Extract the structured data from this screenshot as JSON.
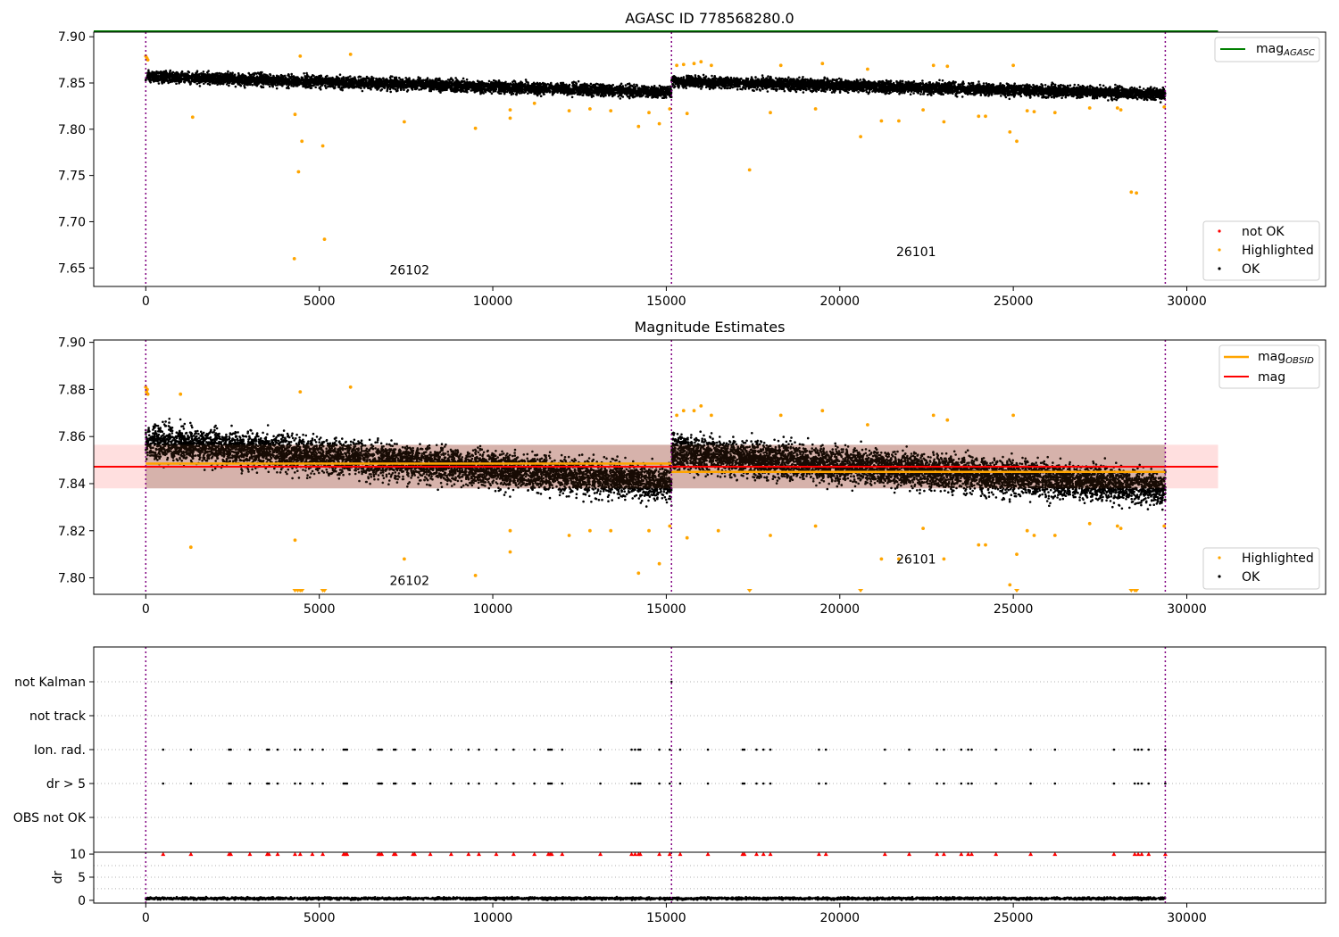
{
  "figure": {
    "panel1_title": "AGASC ID 778568280.0",
    "panel2_title": "Magnitude Estimates"
  },
  "colors": {
    "ok": "#000000",
    "highlighted": "#ffa500",
    "not_ok": "#ff0000",
    "mag_agasc": "#008000",
    "mag_obsid": "#ffa500",
    "mag": "#ff0000",
    "obsid_boundary": "#800080",
    "band_fill": "#ffc0c0"
  },
  "chart_data": [
    {
      "id": "agasc_panel",
      "type": "scatter",
      "title": "AGASC ID 778568280.0",
      "xlim": [
        -1500,
        34000
      ],
      "ylim": [
        7.63,
        7.905
      ],
      "xticks": [
        0,
        5000,
        10000,
        15000,
        20000,
        25000,
        30000
      ],
      "yticks": [
        7.65,
        7.7,
        7.75,
        7.8,
        7.85,
        7.9
      ],
      "ytick_labels": [
        "7.65",
        "7.70",
        "7.75",
        "7.80",
        "7.85",
        "7.90"
      ],
      "hline": {
        "name": "mag",
        "sub": "AGASC",
        "y": 7.906,
        "x": [
          -1500,
          30900
        ]
      },
      "obsid_boundaries": [
        0,
        15150,
        29380
      ],
      "obsids": [
        {
          "label": "26102",
          "x": 7600,
          "y": 7.643
        },
        {
          "label": "26101",
          "x": 22200,
          "y": 7.663
        }
      ],
      "legend": [
        "not OK",
        "Highlighted",
        "OK"
      ],
      "legend_lines": [
        "mag"
      ],
      "series": [
        {
          "name": "OK",
          "segments": [
            {
              "x": [
                0,
                15150
              ],
              "y_start": 7.857,
              "y_end": 7.84,
              "spread": 0.01
            },
            {
              "x": [
                15150,
                29380
              ],
              "y_start": 7.852,
              "y_end": 7.838,
              "spread": 0.01
            }
          ]
        },
        {
          "name": "Highlighted",
          "points": [
            [
              0,
              7.879
            ],
            [
              30,
              7.877
            ],
            [
              60,
              7.875
            ],
            [
              4280,
              7.66
            ],
            [
              4400,
              7.754
            ],
            [
              4500,
              7.787
            ],
            [
              4300,
              7.816
            ],
            [
              4450,
              7.879
            ],
            [
              5100,
              7.782
            ],
            [
              5150,
              7.681
            ],
            [
              5900,
              7.881
            ],
            [
              7450,
              7.808
            ],
            [
              1350,
              7.813
            ],
            [
              9500,
              7.801
            ],
            [
              10500,
              7.812
            ],
            [
              10500,
              7.821
            ],
            [
              11200,
              7.828
            ],
            [
              12200,
              7.82
            ],
            [
              12800,
              7.822
            ],
            [
              13400,
              7.82
            ],
            [
              14200,
              7.803
            ],
            [
              14500,
              7.818
            ],
            [
              14800,
              7.806
            ],
            [
              15100,
              7.822
            ],
            [
              15300,
              7.869
            ],
            [
              15500,
              7.87
            ],
            [
              15800,
              7.871
            ],
            [
              16000,
              7.873
            ],
            [
              16300,
              7.869
            ],
            [
              15600,
              7.817
            ],
            [
              17400,
              7.756
            ],
            [
              18000,
              7.818
            ],
            [
              18300,
              7.869
            ],
            [
              19500,
              7.871
            ],
            [
              19300,
              7.822
            ],
            [
              20600,
              7.792
            ],
            [
              20800,
              7.865
            ],
            [
              21200,
              7.809
            ],
            [
              21700,
              7.809
            ],
            [
              22400,
              7.821
            ],
            [
              22700,
              7.869
            ],
            [
              23000,
              7.808
            ],
            [
              23100,
              7.868
            ],
            [
              24000,
              7.814
            ],
            [
              24200,
              7.814
            ],
            [
              24900,
              7.797
            ],
            [
              25000,
              7.869
            ],
            [
              25100,
              7.787
            ],
            [
              25400,
              7.82
            ],
            [
              25600,
              7.819
            ],
            [
              26200,
              7.818
            ],
            [
              27200,
              7.823
            ],
            [
              28000,
              7.823
            ],
            [
              28100,
              7.821
            ],
            [
              28400,
              7.732
            ],
            [
              28550,
              7.731
            ],
            [
              29350,
              7.824
            ]
          ]
        }
      ]
    },
    {
      "id": "mag_estimates_panel",
      "type": "scatter",
      "title": "Magnitude Estimates",
      "xlim": [
        -1500,
        34000
      ],
      "ylim": [
        7.793,
        7.901
      ],
      "xticks": [
        0,
        5000,
        10000,
        15000,
        20000,
        25000,
        30000
      ],
      "yticks": [
        7.8,
        7.82,
        7.84,
        7.86,
        7.88,
        7.9
      ],
      "ytick_labels": [
        "7.80",
        "7.82",
        "7.84",
        "7.86",
        "7.88",
        "7.90"
      ],
      "obsid_boundaries": [
        0,
        15150,
        29380
      ],
      "obsids": [
        {
          "label": "26102",
          "x": 7600,
          "y": 7.797
        },
        {
          "label": "26101",
          "x": 22200,
          "y": 7.806
        }
      ],
      "lines": [
        {
          "name": "mag",
          "sub": "OBSID",
          "segments": [
            {
              "x": [
                0,
                15150
              ],
              "y": 7.8485
            },
            {
              "x": [
                15150,
                29380
              ],
              "y": 7.845
            }
          ]
        },
        {
          "name": "mag",
          "x": [
            -1500,
            30900
          ],
          "y": 7.8472,
          "band": [
            7.838,
            7.8565
          ]
        }
      ],
      "legend": [
        "Highlighted",
        "OK"
      ],
      "legend_lines": [
        "mag",
        "mag"
      ],
      "series": [
        {
          "name": "OK",
          "segments": [
            {
              "x": [
                0,
                15150
              ],
              "y_start": 7.858,
              "y_end": 7.84,
              "spread": 0.012
            },
            {
              "x": [
                15150,
                29380
              ],
              "y_start": 7.853,
              "y_end": 7.838,
              "spread": 0.012
            }
          ]
        },
        {
          "name": "Highlighted",
          "points": [
            [
              0,
              7.881
            ],
            [
              20,
              7.879
            ],
            [
              40,
              7.88
            ],
            [
              60,
              7.878
            ],
            [
              1000,
              7.878
            ],
            [
              1300,
              7.813
            ],
            [
              4300,
              7.816
            ],
            [
              4450,
              7.879
            ],
            [
              5900,
              7.881
            ],
            [
              7450,
              7.808
            ],
            [
              9500,
              7.801
            ],
            [
              10500,
              7.811
            ],
            [
              10500,
              7.82
            ],
            [
              12200,
              7.818
            ],
            [
              12800,
              7.82
            ],
            [
              13400,
              7.82
            ],
            [
              14200,
              7.802
            ],
            [
              14500,
              7.82
            ],
            [
              14800,
              7.806
            ],
            [
              15100,
              7.822
            ],
            [
              15300,
              7.869
            ],
            [
              15500,
              7.871
            ],
            [
              15800,
              7.871
            ],
            [
              16000,
              7.873
            ],
            [
              16300,
              7.869
            ],
            [
              15600,
              7.817
            ],
            [
              16500,
              7.82
            ],
            [
              18000,
              7.818
            ],
            [
              18300,
              7.869
            ],
            [
              19300,
              7.822
            ],
            [
              19500,
              7.871
            ],
            [
              20800,
              7.865
            ],
            [
              21200,
              7.808
            ],
            [
              21700,
              7.808
            ],
            [
              22400,
              7.821
            ],
            [
              22700,
              7.869
            ],
            [
              23000,
              7.808
            ],
            [
              23100,
              7.867
            ],
            [
              24000,
              7.814
            ],
            [
              24200,
              7.814
            ],
            [
              24900,
              7.797
            ],
            [
              25000,
              7.869
            ],
            [
              25100,
              7.81
            ],
            [
              25400,
              7.82
            ],
            [
              25600,
              7.818
            ],
            [
              26200,
              7.818
            ],
            [
              27200,
              7.823
            ],
            [
              28000,
              7.822
            ],
            [
              28100,
              7.821
            ],
            [
              29350,
              7.822
            ]
          ]
        },
        {
          "name": "Highlighted (below range)",
          "marker": "triangle-down",
          "x": [
            4300,
            4380,
            4450,
            4500,
            5100,
            5150,
            17400,
            20600,
            25100,
            28400,
            28500,
            28550
          ]
        }
      ]
    },
    {
      "id": "flags_panel",
      "type": "scatter",
      "xlim": [
        -1500,
        34000
      ],
      "categories": [
        "not Kalman",
        "not track",
        "Ion. rad.",
        "dr > 5",
        "OBS not OK"
      ],
      "obsid_boundaries": [
        0,
        15150,
        29380
      ],
      "flag_times": [
        500,
        1300,
        2400,
        2450,
        3000,
        3500,
        3550,
        3800,
        4300,
        4450,
        4800,
        5100,
        5700,
        5750,
        5800,
        6700,
        6750,
        6800,
        7150,
        7200,
        7700,
        7750,
        8200,
        8800,
        9300,
        9600,
        10100,
        10600,
        11200,
        11600,
        11650,
        11700,
        12000,
        13100,
        14000,
        14100,
        14200,
        14250,
        14800,
        15100,
        15400,
        16200,
        17200,
        17250,
        17600,
        17800,
        18000,
        19400,
        19600,
        21300,
        22000,
        22800,
        23000,
        23500,
        23700,
        23800,
        24500,
        25500,
        26200,
        27900,
        28500,
        28600,
        28700,
        28900,
        29380
      ],
      "series": [
        {
          "name": "not Kalman",
          "x": [
            15150
          ]
        },
        {
          "name": "Ion. rad.",
          "uses": "flag_times"
        },
        {
          "name": "dr > 5",
          "uses": "flag_times"
        }
      ]
    },
    {
      "id": "dr_panel",
      "type": "scatter",
      "ylabel": "dr",
      "xlim": [
        -1500,
        34000
      ],
      "ylim": [
        -0.6,
        10.4
      ],
      "xticks": [
        0,
        5000,
        10000,
        15000,
        20000,
        25000,
        30000
      ],
      "yticks": [
        0,
        5,
        10
      ],
      "obsid_boundaries": [
        0,
        15150,
        29380
      ],
      "series": [
        {
          "name": "dr",
          "segments": [
            {
              "x": [
                0,
                29380
              ],
              "y": 0.4,
              "spread": 0.4
            }
          ]
        },
        {
          "name": "dr clipped (> 10)",
          "marker": "triangle-up",
          "uses": "flag_times",
          "y": 10
        }
      ]
    }
  ]
}
